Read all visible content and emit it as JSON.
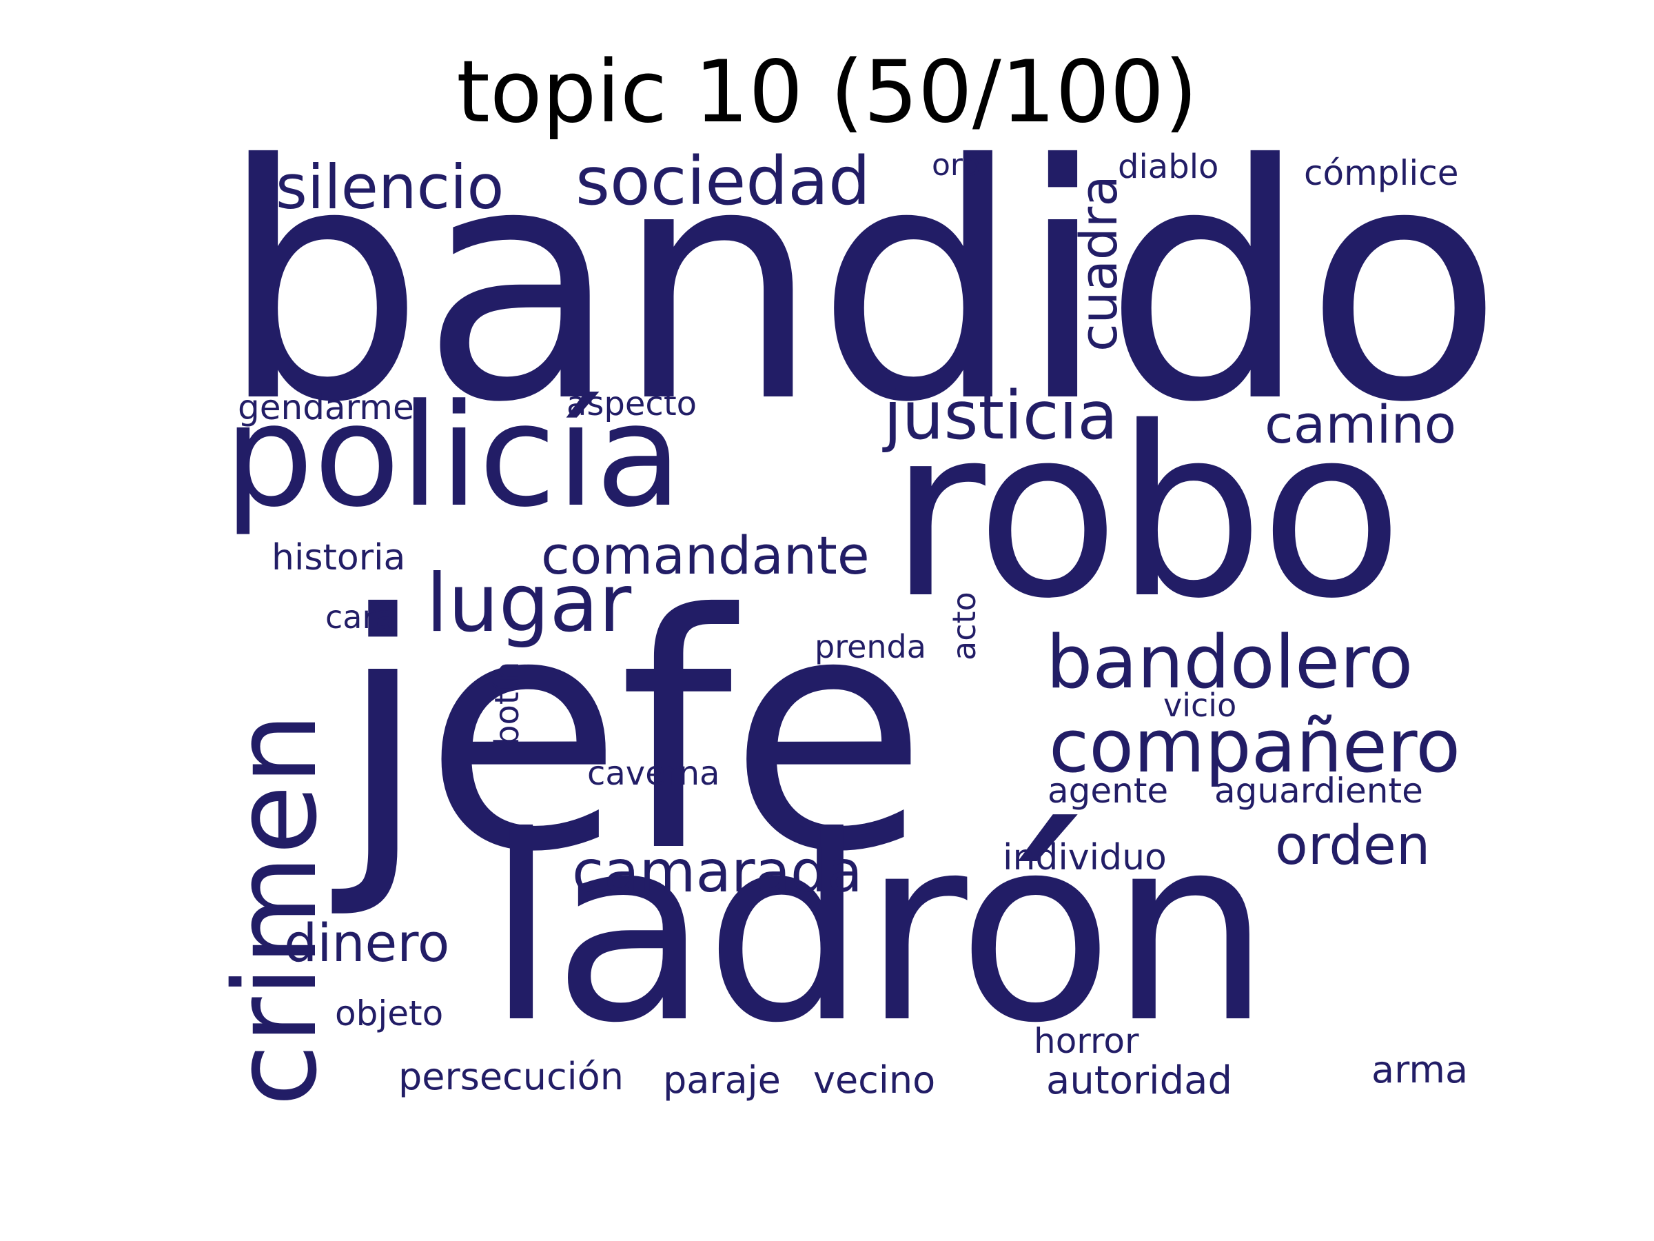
{
  "title": "topic 10 (50/100)",
  "word_color": "#221d66",
  "words": {
    "bandido": "bandido",
    "jefe": "jefe",
    "robo": "robo",
    "ladron": "ladrón",
    "policia": "policía",
    "crimen": "crimen",
    "silencio": "silencio",
    "sociedad": "sociedad",
    "oro": "oro",
    "diablo": "diablo",
    "complice": "cómplice",
    "cuadra": "cuadra",
    "gendarme": "gendarme",
    "aspecto": "aspecto",
    "justicia": "justicia",
    "camino": "camino",
    "historia": "historia",
    "comandante": "comandante",
    "lugar": "lugar",
    "cara": "cara",
    "acto": "acto",
    "prenda": "prenda",
    "bandolero": "bandolero",
    "botin": "botín",
    "vicio": "vicio",
    "companero": "compañero",
    "caverna": "caverna",
    "agente": "agente",
    "aguardiente": "aguardiente",
    "camarada": "camarada",
    "orden": "orden",
    "individuo": "individuo",
    "dinero": "dinero",
    "objeto": "objeto",
    "horror": "horror",
    "persecucion": "persecución",
    "paraje": "paraje",
    "vecino": "vecino",
    "autoridad": "autoridad",
    "arma": "arma"
  }
}
